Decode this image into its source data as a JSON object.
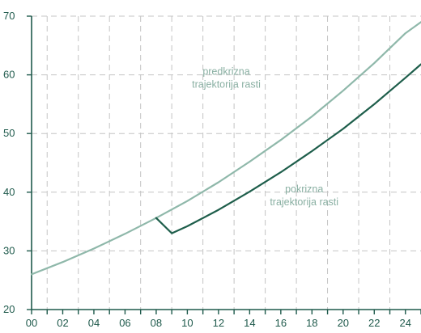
{
  "chart_data": {
    "type": "line",
    "xlim": [
      0,
      25
    ],
    "ylim": [
      20,
      70
    ],
    "x_ticks": [
      "00",
      "02",
      "04",
      "06",
      "08",
      "10",
      "12",
      "14",
      "16",
      "18",
      "20",
      "22",
      "24"
    ],
    "y_ticks": [
      20,
      30,
      40,
      50,
      60,
      70
    ],
    "grid": true,
    "series": [
      {
        "color": "#8fb8aa",
        "x": [
          0,
          2,
          4,
          6,
          8,
          10,
          12,
          14,
          16,
          18,
          20,
          22,
          24,
          25
        ],
        "values": [
          26.0,
          28.1,
          30.4,
          32.9,
          35.6,
          38.5,
          41.7,
          45.2,
          48.9,
          52.9,
          57.3,
          62.0,
          67.1,
          69.0
        ]
      },
      {
        "color": "#1e5e4b",
        "x": [
          8,
          9,
          10,
          12,
          14,
          16,
          18,
          20,
          22,
          24,
          25
        ],
        "values": [
          35.6,
          33.0,
          34.2,
          37.0,
          40.1,
          43.4,
          47.0,
          50.8,
          55.0,
          59.5,
          61.8
        ]
      }
    ],
    "annotations": [
      {
        "lines": [
          "predkrizna",
          "trajektorija rasti"
        ],
        "x": 12.5,
        "y": 60
      },
      {
        "lines": [
          "pokrizna",
          "trajektorija rasti"
        ],
        "x": 17.5,
        "y": 40
      }
    ]
  }
}
